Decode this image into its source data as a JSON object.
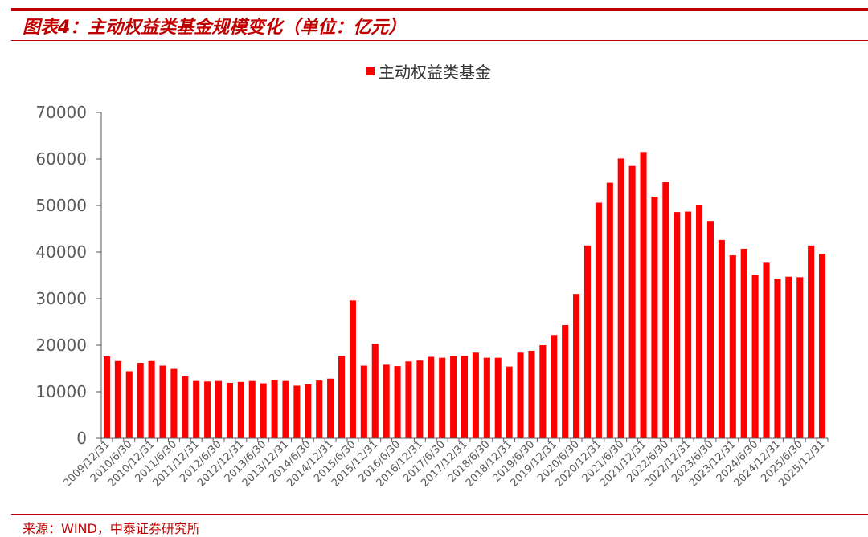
{
  "header": {
    "title": "图表4：主动权益类基金规模变化（单位：亿元）"
  },
  "footer": {
    "source": "来源：WIND，中泰证券研究所"
  },
  "chart_data": {
    "type": "bar",
    "legend": {
      "position": "top-center",
      "entries": [
        "主动权益类基金"
      ]
    },
    "series": [
      {
        "name": "主动权益类基金",
        "color": "#ff0000",
        "values": [
          17600,
          16600,
          14400,
          16200,
          16600,
          15600,
          14900,
          13300,
          12300,
          12200,
          12300,
          11900,
          12100,
          12300,
          11800,
          12500,
          12300,
          11300,
          11600,
          12400,
          12800,
          17700,
          29600,
          15600,
          20300,
          15800,
          15500,
          16500,
          16700,
          17500,
          17300,
          17700,
          17700,
          18400,
          17300,
          17300,
          15400,
          18400,
          18800,
          20000,
          22200,
          24300,
          31000,
          41400,
          50600,
          54900,
          60100,
          58500,
          61500,
          51900,
          55000,
          48600,
          48700,
          50000,
          46700,
          42600,
          39300,
          40700,
          35100,
          37700,
          34300,
          34700,
          34600,
          41400,
          39600
        ]
      }
    ],
    "categories": [
      "2009/12/31",
      "2010/3/31",
      "2010/6/30",
      "2010/9/30",
      "2010/12/31",
      "2011/3/31",
      "2011/6/30",
      "2011/9/30",
      "2011/12/31",
      "2012/3/31",
      "2012/6/30",
      "2012/9/30",
      "2012/12/31",
      "2013/3/31",
      "2013/6/30",
      "2013/9/30",
      "2013/12/31",
      "2014/3/31",
      "2014/6/30",
      "2014/9/30",
      "2014/12/31",
      "2015/3/31",
      "2015/6/30",
      "2015/9/30",
      "2015/12/31",
      "2016/3/31",
      "2016/6/30",
      "2016/9/30",
      "2016/12/31",
      "2017/3/31",
      "2017/6/30",
      "2017/9/30",
      "2017/12/31",
      "2018/3/31",
      "2018/6/30",
      "2018/9/30",
      "2018/12/31",
      "2019/3/31",
      "2019/6/30",
      "2019/9/30",
      "2019/12/31",
      "2020/3/31",
      "2020/6/30",
      "2020/9/30",
      "2020/12/31",
      "2021/3/31",
      "2021/6/30",
      "2021/9/30",
      "2021/12/31",
      "2022/3/31",
      "2022/6/30",
      "2022/9/30",
      "2022/12/31",
      "2023/3/31",
      "2023/6/30",
      "2023/9/30",
      "2023/12/31",
      "2024/3/31",
      "2024/6/30",
      "2024/9/30",
      "2024/12/31",
      "2025/3/31",
      "2025/6/30",
      "2025/9/30",
      "2025/12/31"
    ],
    "tick_labels_shown": [
      "2009/12/31",
      "2010/6/30",
      "2010/12/31",
      "2011/6/30",
      "2011/12/31",
      "2012/6/30",
      "2012/12/31",
      "2013/6/30",
      "2013/12/31",
      "2014/6/30",
      "2014/12/31",
      "2015/6/30",
      "2015/12/31",
      "2016/6/30",
      "2016/12/31",
      "2017/6/30",
      "2017/12/31",
      "2018/6/30",
      "2018/12/31",
      "2019/6/30",
      "2019/12/31",
      "2020/6/30",
      "2020/12/31",
      "2021/6/30",
      "2021/12/31",
      "2022/6/30",
      "2022/12/31",
      "2023/6/30",
      "2023/12/31",
      "2024/6/30",
      "2024/12/31",
      "2025/6/30",
      "2025/12/31"
    ],
    "y_ticks": [
      "0",
      "10000",
      "20000",
      "30000",
      "40000",
      "50000",
      "60000",
      "70000"
    ],
    "ylim": [
      0,
      70000
    ],
    "grid": false
  }
}
